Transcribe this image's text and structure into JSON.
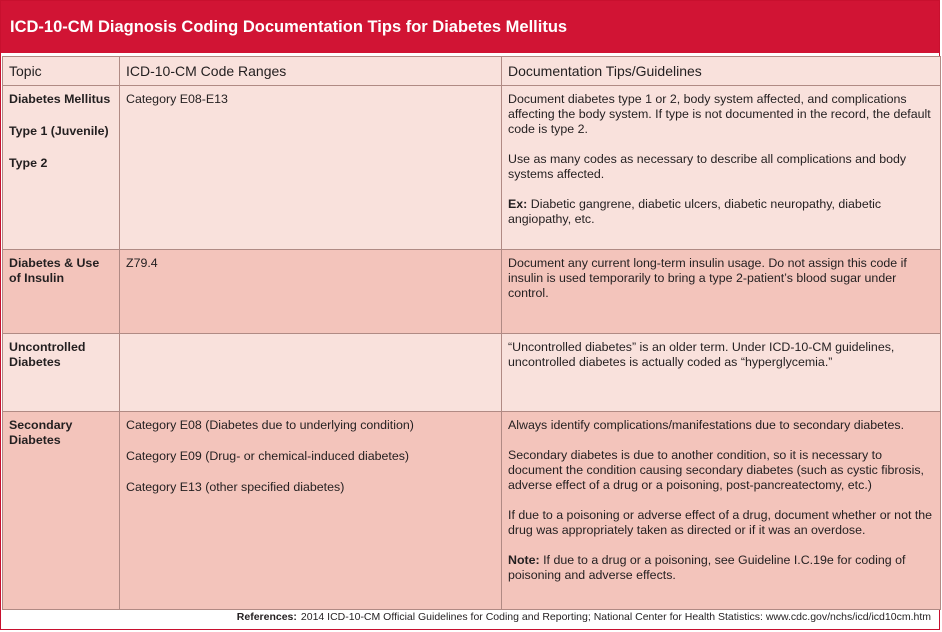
{
  "title": "ICD-10-CM Diagnosis Coding Documentation Tips for Diabetes Mellitus",
  "headers": [
    "Topic",
    "ICD-10-CM Code Ranges",
    "Documentation Tips/Guidelines"
  ],
  "rows": [
    {
      "topic": [
        "Diabetes Mellitus",
        "Type 1 (Juvenile)",
        "Type 2"
      ],
      "codes": [
        "Category E08-E13"
      ],
      "tips": [
        {
          "bold": "",
          "text": "Document diabetes type 1 or 2, body system affected, and complications affecting the body system. If type is not documented in the record, the default code is type 2."
        },
        {
          "bold": "",
          "text": "Use as many codes as necessary to describe all complications and body systems affected."
        },
        {
          "bold": "Ex:",
          "text": " Diabetic gangrene, diabetic ulcers, diabetic neuropathy, diabetic angiopathy, etc."
        }
      ]
    },
    {
      "topic": [
        "Diabetes & Use of Insulin"
      ],
      "codes": [
        "Z79.4"
      ],
      "tips": [
        {
          "bold": "",
          "text": "Document any current long-term insulin usage. Do not assign this code if insulin is used temporarily to bring a type 2-patient’s blood sugar under control."
        }
      ]
    },
    {
      "topic": [
        "Uncontrolled Diabetes"
      ],
      "codes": [],
      "tips": [
        {
          "bold": "",
          "text": "“Uncontrolled diabetes” is an older term. Under ICD-10-CM guidelines, uncontrolled diabetes is actually coded as “hyperglycemia.”"
        }
      ]
    },
    {
      "topic": [
        "Secondary Diabetes"
      ],
      "codes": [
        "Category E08 (Diabetes due to underlying condition)",
        "Category E09  (Drug- or chemical-induced diabetes)",
        "Category E13 (other specified diabetes)"
      ],
      "tips": [
        {
          "bold": "",
          "text": "Always identify complications/manifestations due to secondary diabetes."
        },
        {
          "bold": "",
          "text": "Secondary diabetes is due to another condition, so it is necessary to document the condition causing secondary diabetes (such as cystic fibrosis, adverse effect of a drug or a poisoning, post-pancreatectomy, etc.)"
        },
        {
          "bold": "",
          "text": "If due to a poisoning or adverse effect of a drug, document whether or not the drug was appropriately taken as directed or if it was an overdose."
        },
        {
          "bold": "Note:",
          "text": " If due to a drug or a poisoning, see Guideline I.C.19e for coding of poisoning and adverse effects."
        }
      ]
    }
  ],
  "references": {
    "label": "References:",
    "text": "2014 ICD-10-CM Official Guidelines for Coding and Reporting; National Center for Health Statistics: www.cdc.gov/nchs/icd/icd10cm.htm"
  },
  "colors": {
    "title_bg": "#d11434",
    "light_row": "#f9e1dc",
    "dark_row": "#f3c4bb"
  }
}
